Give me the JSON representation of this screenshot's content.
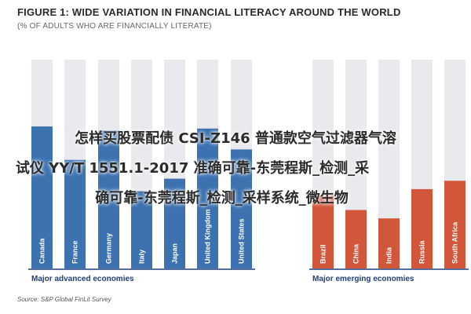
{
  "title": "FIGURE 1: WIDE VARIATION IN FINANCIAL LITERACY AROUND THE WORLD",
  "subtitle": "(% OF ADULTS WHO ARE FINANCIALLY LITERATE)",
  "overlay_text": {
    "line1": "怎样买股票配债 CSI-Z146 普通款空气过滤器气溶",
    "line2": "试仪 YY/T 1551.1-2017 准确可靠-东莞程斯_检测_采",
    "line3": "确可靠-东莞程斯_检测_采样系统_微生物"
  },
  "groups": {
    "advanced": "Major advanced economies",
    "emerging": "Major emerging economies"
  },
  "source": "Source: S&P Global FinLit Survey",
  "colors": {
    "advanced_bar": "#3c72b0",
    "emerging_bar": "#d2563a",
    "background_bar": "#e8eaee",
    "axis_line": "#1f3f7a"
  },
  "chart_data": {
    "type": "bar",
    "title": "FIGURE 1: WIDE VARIATION IN FINANCIAL LITERACY AROUND THE WORLD",
    "subtitle": "(% OF ADULTS WHO ARE FINANCIALLY LITERATE)",
    "xlabel": "",
    "ylabel": "",
    "ylim": [
      0,
      100
    ],
    "grid": false,
    "categories": [
      "Canada",
      "France",
      "Germany",
      "Italy",
      "Japan",
      "United Kingdom",
      "United States",
      "Brazil",
      "China",
      "India",
      "Russia",
      "South Africa"
    ],
    "series": [
      {
        "name": "Major advanced economies",
        "values": [
          68,
          52,
          66,
          37,
          43,
          67,
          57,
          null,
          null,
          null,
          null,
          null
        ]
      },
      {
        "name": "Major emerging economies",
        "values": [
          null,
          null,
          null,
          null,
          null,
          null,
          null,
          35,
          28,
          24,
          38,
          42
        ]
      }
    ]
  }
}
